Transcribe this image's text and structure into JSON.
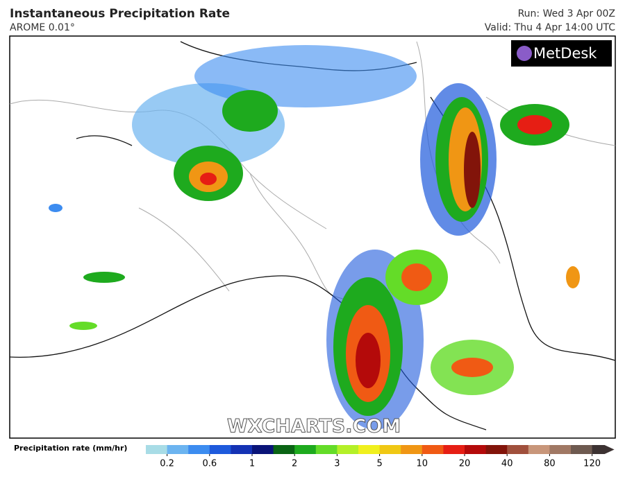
{
  "header": {
    "title": "Instantaneous Precipitation Rate",
    "subtitle": "AROME 0.01°",
    "run": "Run: Wed 3 Apr 00Z",
    "valid": "Valid: Thu 4 Apr 14:00 UTC"
  },
  "logo": "MetDesk",
  "watermark": "WXCHARTS.COM",
  "colorbar": {
    "label": "Precipitation rate (mm/hr)",
    "ticks": [
      0.2,
      0.6,
      1,
      2,
      3,
      5,
      10,
      20,
      40,
      80,
      120
    ],
    "colors": [
      "#a8dce6",
      "#6cb4f0",
      "#3c8cf0",
      "#1e5adc",
      "#1432b4",
      "#0a1478",
      "#0a6414",
      "#1eaa1e",
      "#64dc28",
      "#b4f028",
      "#f0f01e",
      "#f0c814",
      "#f09614",
      "#f05a14",
      "#e61e14",
      "#b40a0a",
      "#82140a",
      "#a0503c",
      "#c8967a",
      "#a07864",
      "#6e5a50",
      "#3c3232"
    ]
  }
}
